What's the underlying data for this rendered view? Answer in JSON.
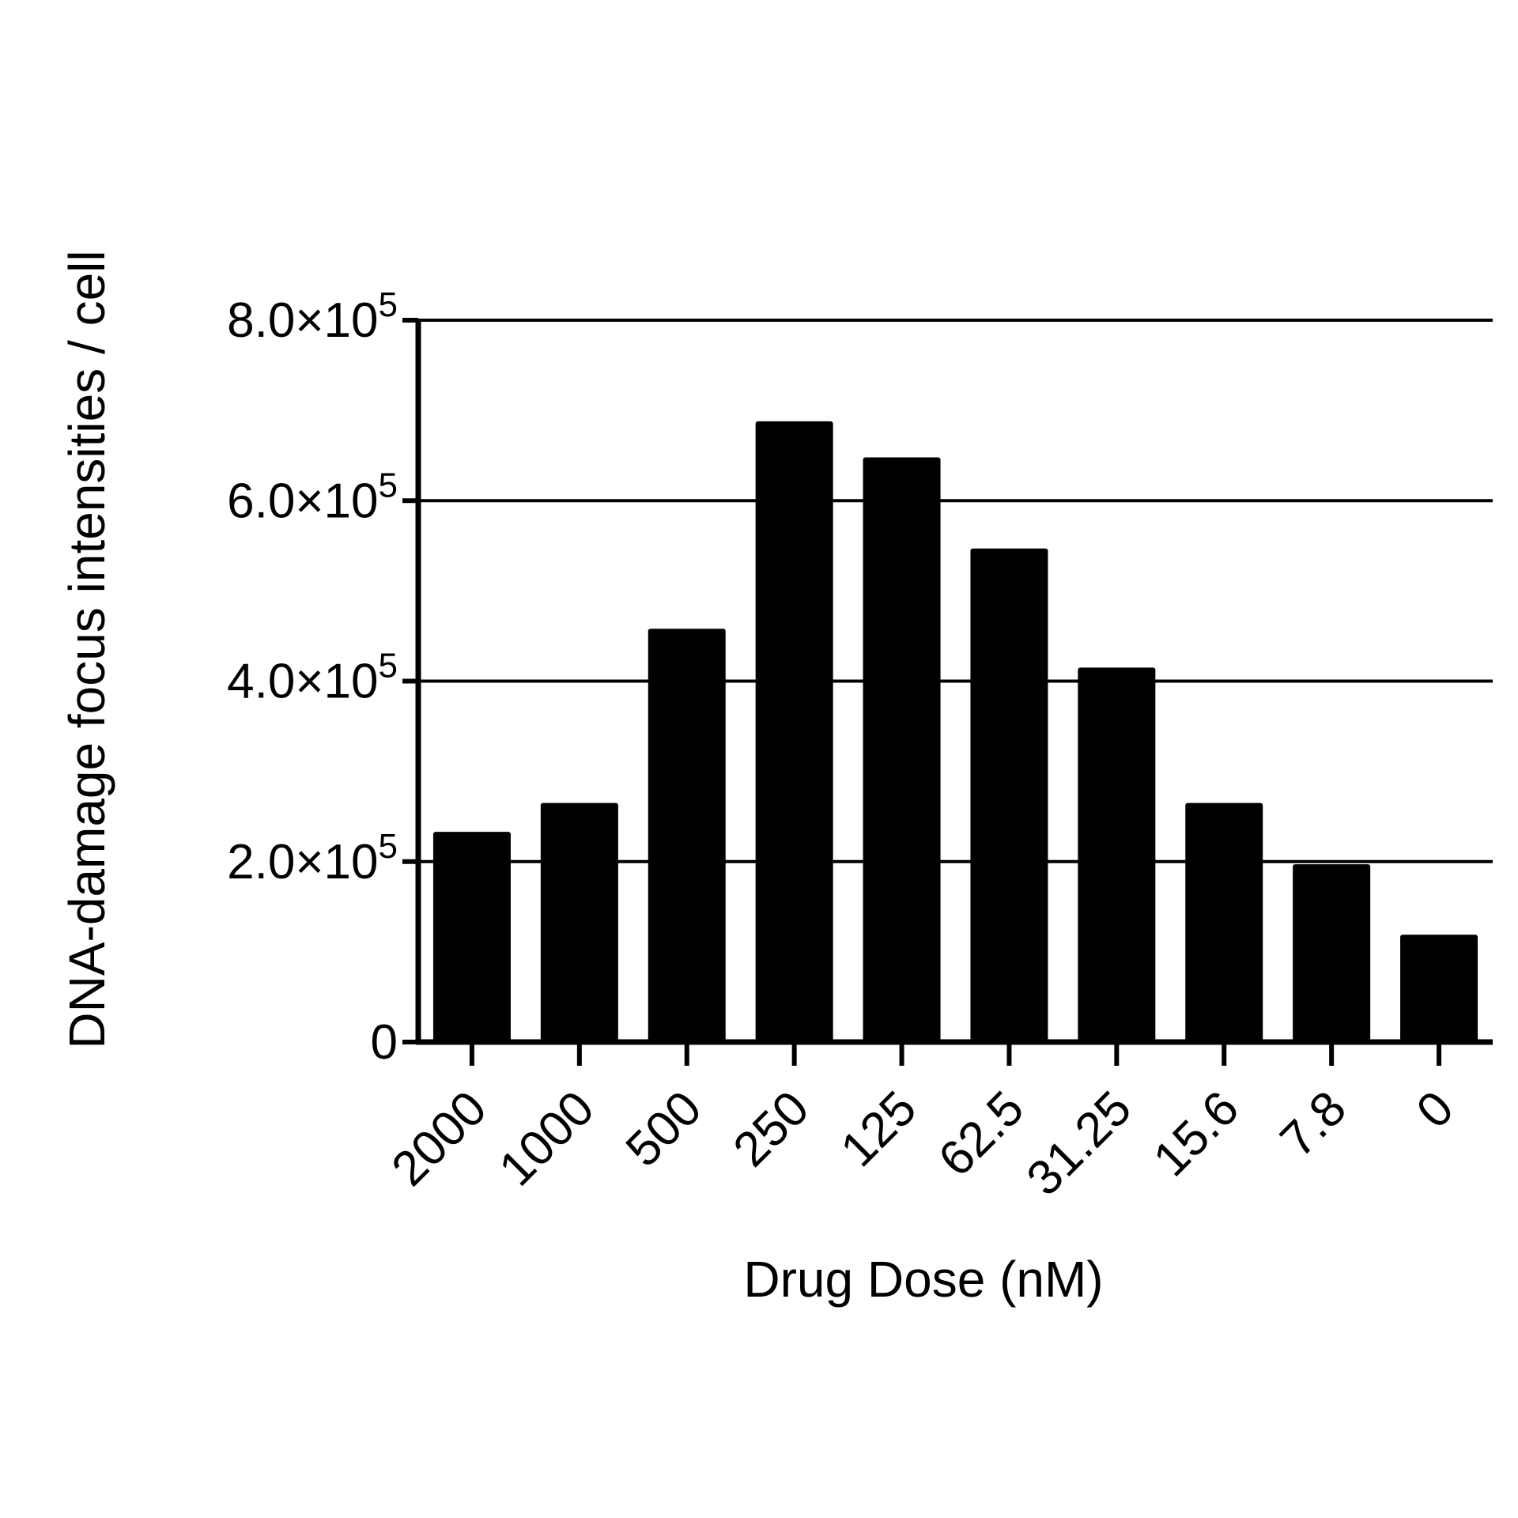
{
  "chart_data": {
    "type": "bar",
    "title": "",
    "xlabel": "Drug Dose (nM)",
    "ylabel": "DNA-damage focus intensities / cell",
    "categories": [
      "2000",
      "1000",
      "500",
      "250",
      "125",
      "62.5",
      "31.25",
      "15.6",
      "7.8",
      "0"
    ],
    "values": [
      233000,
      265000,
      458000,
      688000,
      648000,
      547000,
      415000,
      265000,
      197000,
      119000
    ],
    "ylim": [
      0,
      800000
    ],
    "yticks": [
      {
        "value": 0,
        "label": "0",
        "exp": ""
      },
      {
        "value": 200000,
        "label": "2.0×10",
        "exp": "5"
      },
      {
        "value": 400000,
        "label": "4.0×10",
        "exp": "5"
      },
      {
        "value": 600000,
        "label": "6.0×10",
        "exp": "5"
      },
      {
        "value": 800000,
        "label": "8.0×10",
        "exp": "5"
      }
    ],
    "grid": "horizontal",
    "bar_color": "#000000"
  }
}
